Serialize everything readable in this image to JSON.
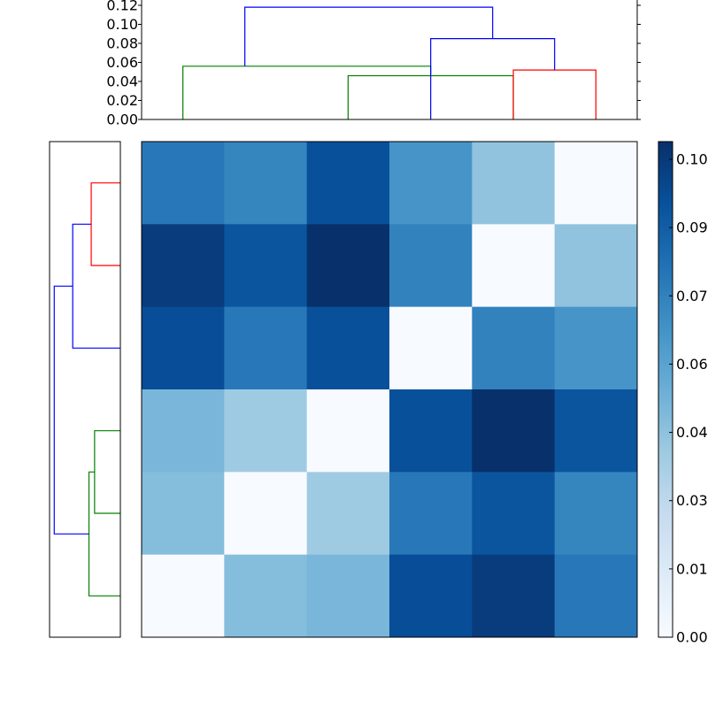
{
  "chart_data": [
    {
      "type": "dendrogram",
      "orientation": "top",
      "ylim": [
        0,
        0.12
      ],
      "yticks": [
        "0.00",
        "0.02",
        "0.04",
        "0.06",
        "0.08",
        "0.10",
        "0.12"
      ],
      "leaf_count": 6,
      "links": [
        {
          "color": "#008000",
          "left": 2.5,
          "right": 4.5,
          "height": 0.046,
          "left_height": 0,
          "right_height": 0
        },
        {
          "color": "#008000",
          "left": 0.5,
          "right": 3.5,
          "height": 0.056,
          "left_height": 0,
          "right_height": 0.046
        },
        {
          "color": "#ff0000",
          "left": 4.5,
          "right": 5.5,
          "height": 0.052,
          "left_height": 0,
          "right_height": 0
        },
        {
          "color": "#0000ff",
          "left": 3.5,
          "right": 5.0,
          "height": 0.085,
          "left_height": 0,
          "right_height": 0.052
        },
        {
          "color": "#0000ff",
          "left": 1.25,
          "right": 4.25,
          "height": 0.118,
          "left_height": 0.056,
          "right_height": 0.085
        }
      ]
    },
    {
      "type": "dendrogram",
      "orientation": "left",
      "leaf_count": 6,
      "links": [
        {
          "color": "#ff0000",
          "left": 0.5,
          "right": 1.5,
          "height": 0.052,
          "left_height": 0,
          "right_height": 0
        },
        {
          "color": "#0000ff",
          "left": 1.0,
          "right": 2.5,
          "height": 0.085,
          "left_height": 0.052,
          "right_height": 0
        },
        {
          "color": "#008000",
          "left": 3.5,
          "right": 4.5,
          "height": 0.046,
          "left_height": 0,
          "right_height": 0
        },
        {
          "color": "#008000",
          "left": 4.0,
          "right": 5.5,
          "height": 0.056,
          "left_height": 0.046,
          "right_height": 0
        },
        {
          "color": "#0000ff",
          "left": 1.75,
          "right": 4.75,
          "height": 0.118,
          "left_height": 0.085,
          "right_height": 0.056
        }
      ],
      "xlim": [
        0,
        0.12
      ]
    },
    {
      "type": "heatmap",
      "rows": 6,
      "cols": 6,
      "values": [
        [
          0.078,
          0.073,
          0.095,
          0.066,
          0.044,
          0.0
        ],
        [
          0.103,
          0.093,
          0.108,
          0.074,
          0.0,
          0.044
        ],
        [
          0.096,
          0.078,
          0.095,
          0.0,
          0.074,
          0.066
        ],
        [
          0.05,
          0.04,
          0.0,
          0.095,
          0.108,
          0.093
        ],
        [
          0.047,
          0.0,
          0.04,
          0.078,
          0.093,
          0.073
        ],
        [
          0.0,
          0.047,
          0.05,
          0.096,
          0.103,
          0.078
        ]
      ],
      "vmin": 0,
      "vmax": 0.108,
      "colormap": "Blues",
      "colorbar_ticks": [
        "0.00",
        "0.01",
        "0.03",
        "0.04",
        "0.06",
        "0.07",
        "0.09",
        "0.10"
      ]
    }
  ]
}
